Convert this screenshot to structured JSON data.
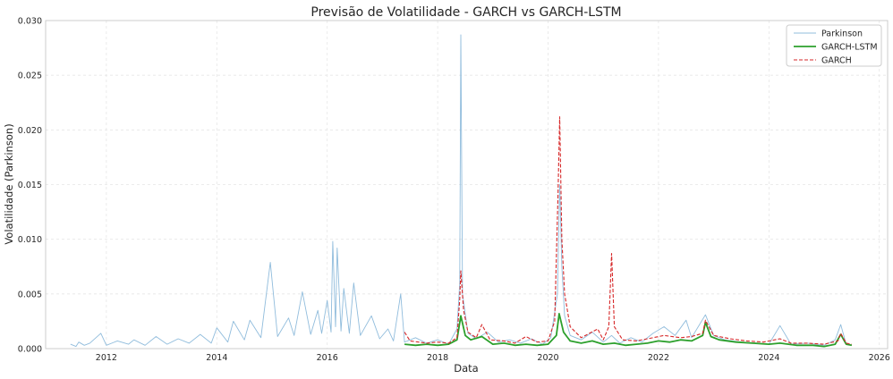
{
  "chart_data": {
    "type": "line",
    "title": "Previsão de Volatilidade - GARCH vs GARCH-LSTM",
    "xlabel": "Data",
    "ylabel": "Volatilidade (Parkinson)",
    "xlim": [
      2010.9,
      2026.15
    ],
    "ylim": [
      0.0,
      0.03
    ],
    "x_ticks": [
      "2012",
      "2014",
      "2016",
      "2018",
      "2020",
      "2022",
      "2024",
      "2026"
    ],
    "y_ticks": [
      "0.000",
      "0.005",
      "0.010",
      "0.015",
      "0.020",
      "0.025",
      "0.030"
    ],
    "grid": true,
    "legend_position": "top-right",
    "series": [
      {
        "name": "Parkinson",
        "color": "#8ab8da",
        "style": "solid-thin",
        "points": [
          [
            2011.35,
            0.0004
          ],
          [
            2011.45,
            0.0002
          ],
          [
            2011.5,
            0.0006
          ],
          [
            2011.6,
            0.0003
          ],
          [
            2011.7,
            0.0005
          ],
          [
            2011.9,
            0.0014
          ],
          [
            2012.0,
            0.0003
          ],
          [
            2012.2,
            0.0007
          ],
          [
            2012.4,
            0.0004
          ],
          [
            2012.5,
            0.0008
          ],
          [
            2012.7,
            0.0003
          ],
          [
            2012.9,
            0.0011
          ],
          [
            2013.1,
            0.0004
          ],
          [
            2013.3,
            0.0009
          ],
          [
            2013.5,
            0.0005
          ],
          [
            2013.7,
            0.0013
          ],
          [
            2013.9,
            0.0005
          ],
          [
            2014.0,
            0.0019
          ],
          [
            2014.2,
            0.0006
          ],
          [
            2014.3,
            0.0025
          ],
          [
            2014.5,
            0.0008
          ],
          [
            2014.6,
            0.0026
          ],
          [
            2014.8,
            0.001
          ],
          [
            2014.97,
            0.0079
          ],
          [
            2015.1,
            0.0011
          ],
          [
            2015.3,
            0.0028
          ],
          [
            2015.4,
            0.0012
          ],
          [
            2015.55,
            0.0052
          ],
          [
            2015.7,
            0.0013
          ],
          [
            2015.83,
            0.0035
          ],
          [
            2015.9,
            0.0014
          ],
          [
            2016.0,
            0.0044
          ],
          [
            2016.07,
            0.0015
          ],
          [
            2016.1,
            0.0098
          ],
          [
            2016.15,
            0.002
          ],
          [
            2016.18,
            0.0092
          ],
          [
            2016.25,
            0.0016
          ],
          [
            2016.3,
            0.0055
          ],
          [
            2016.4,
            0.0014
          ],
          [
            2016.48,
            0.006
          ],
          [
            2016.6,
            0.0012
          ],
          [
            2016.8,
            0.003
          ],
          [
            2016.95,
            0.0009
          ],
          [
            2017.1,
            0.0018
          ],
          [
            2017.2,
            0.0007
          ],
          [
            2017.33,
            0.005
          ],
          [
            2017.4,
            0.0006
          ],
          [
            2017.6,
            0.001
          ],
          [
            2017.8,
            0.0005
          ],
          [
            2018.0,
            0.0008
          ],
          [
            2018.2,
            0.0004
          ],
          [
            2018.35,
            0.0018
          ],
          [
            2018.4,
            0.006
          ],
          [
            2018.42,
            0.0287
          ],
          [
            2018.45,
            0.005
          ],
          [
            2018.55,
            0.0014
          ],
          [
            2018.7,
            0.0009
          ],
          [
            2018.9,
            0.0015
          ],
          [
            2019.1,
            0.0006
          ],
          [
            2019.3,
            0.0008
          ],
          [
            2019.5,
            0.0005
          ],
          [
            2019.7,
            0.0009
          ],
          [
            2019.9,
            0.0004
          ],
          [
            2020.05,
            0.001
          ],
          [
            2020.17,
            0.005
          ],
          [
            2020.21,
            0.015
          ],
          [
            2020.25,
            0.0075
          ],
          [
            2020.3,
            0.003
          ],
          [
            2020.4,
            0.0012
          ],
          [
            2020.6,
            0.0008
          ],
          [
            2020.8,
            0.0015
          ],
          [
            2021.0,
            0.0006
          ],
          [
            2021.15,
            0.0012
          ],
          [
            2021.3,
            0.0005
          ],
          [
            2021.5,
            0.001
          ],
          [
            2021.7,
            0.0006
          ],
          [
            2021.9,
            0.0014
          ],
          [
            2022.1,
            0.002
          ],
          [
            2022.3,
            0.0012
          ],
          [
            2022.5,
            0.0026
          ],
          [
            2022.6,
            0.001
          ],
          [
            2022.85,
            0.0031
          ],
          [
            2023.0,
            0.0012
          ],
          [
            2023.2,
            0.0008
          ],
          [
            2023.5,
            0.0006
          ],
          [
            2023.8,
            0.0005
          ],
          [
            2024.0,
            0.0004
          ],
          [
            2024.2,
            0.0021
          ],
          [
            2024.4,
            0.0004
          ],
          [
            2024.7,
            0.0005
          ],
          [
            2025.0,
            0.0003
          ],
          [
            2025.2,
            0.0008
          ],
          [
            2025.3,
            0.0022
          ],
          [
            2025.4,
            0.0004
          ],
          [
            2025.5,
            0.0003
          ]
        ]
      },
      {
        "name": "GARCH-LSTM",
        "color": "#2ca02c",
        "style": "solid-thick",
        "points": [
          [
            2017.4,
            0.0004
          ],
          [
            2017.6,
            0.0003
          ],
          [
            2017.8,
            0.0004
          ],
          [
            2018.0,
            0.0003
          ],
          [
            2018.2,
            0.0004
          ],
          [
            2018.35,
            0.0008
          ],
          [
            2018.42,
            0.003
          ],
          [
            2018.5,
            0.0012
          ],
          [
            2018.6,
            0.0008
          ],
          [
            2018.8,
            0.0011
          ],
          [
            2019.0,
            0.0004
          ],
          [
            2019.2,
            0.0005
          ],
          [
            2019.4,
            0.0003
          ],
          [
            2019.6,
            0.0004
          ],
          [
            2019.8,
            0.0003
          ],
          [
            2020.0,
            0.0004
          ],
          [
            2020.15,
            0.0012
          ],
          [
            2020.2,
            0.0032
          ],
          [
            2020.28,
            0.0015
          ],
          [
            2020.4,
            0.0007
          ],
          [
            2020.6,
            0.0005
          ],
          [
            2020.8,
            0.0007
          ],
          [
            2021.0,
            0.0004
          ],
          [
            2021.2,
            0.0005
          ],
          [
            2021.4,
            0.0003
          ],
          [
            2021.6,
            0.0004
          ],
          [
            2021.8,
            0.0005
          ],
          [
            2022.0,
            0.0007
          ],
          [
            2022.2,
            0.0006
          ],
          [
            2022.4,
            0.0008
          ],
          [
            2022.6,
            0.0007
          ],
          [
            2022.8,
            0.0012
          ],
          [
            2022.85,
            0.0024
          ],
          [
            2022.95,
            0.0011
          ],
          [
            2023.1,
            0.0008
          ],
          [
            2023.4,
            0.0006
          ],
          [
            2023.7,
            0.0005
          ],
          [
            2024.0,
            0.0004
          ],
          [
            2024.2,
            0.0005
          ],
          [
            2024.5,
            0.0003
          ],
          [
            2024.8,
            0.0003
          ],
          [
            2025.0,
            0.0002
          ],
          [
            2025.2,
            0.0004
          ],
          [
            2025.3,
            0.0013
          ],
          [
            2025.4,
            0.0004
          ],
          [
            2025.5,
            0.0003
          ]
        ]
      },
      {
        "name": "GARCH",
        "color": "#d62728",
        "style": "dashed",
        "points": [
          [
            2017.4,
            0.0015
          ],
          [
            2017.5,
            0.0007
          ],
          [
            2017.8,
            0.0005
          ],
          [
            2018.0,
            0.0006
          ],
          [
            2018.2,
            0.0005
          ],
          [
            2018.35,
            0.001
          ],
          [
            2018.4,
            0.0045
          ],
          [
            2018.42,
            0.0071
          ],
          [
            2018.47,
            0.0035
          ],
          [
            2018.55,
            0.0015
          ],
          [
            2018.7,
            0.001
          ],
          [
            2018.8,
            0.0022
          ],
          [
            2018.95,
            0.0008
          ],
          [
            2019.2,
            0.0007
          ],
          [
            2019.4,
            0.0005
          ],
          [
            2019.6,
            0.0011
          ],
          [
            2019.8,
            0.0006
          ],
          [
            2020.0,
            0.0007
          ],
          [
            2020.12,
            0.0025
          ],
          [
            2020.18,
            0.014
          ],
          [
            2020.21,
            0.0212
          ],
          [
            2020.25,
            0.01
          ],
          [
            2020.3,
            0.005
          ],
          [
            2020.4,
            0.002
          ],
          [
            2020.6,
            0.001
          ],
          [
            2020.9,
            0.0018
          ],
          [
            2021.0,
            0.0008
          ],
          [
            2021.1,
            0.002
          ],
          [
            2021.15,
            0.0087
          ],
          [
            2021.2,
            0.002
          ],
          [
            2021.35,
            0.0008
          ],
          [
            2021.6,
            0.0007
          ],
          [
            2021.9,
            0.001
          ],
          [
            2022.1,
            0.0012
          ],
          [
            2022.4,
            0.001
          ],
          [
            2022.6,
            0.0011
          ],
          [
            2022.8,
            0.0014
          ],
          [
            2022.85,
            0.0026
          ],
          [
            2023.0,
            0.0012
          ],
          [
            2023.3,
            0.0009
          ],
          [
            2023.6,
            0.0007
          ],
          [
            2023.9,
            0.0006
          ],
          [
            2024.2,
            0.0009
          ],
          [
            2024.4,
            0.0005
          ],
          [
            2024.7,
            0.0005
          ],
          [
            2025.0,
            0.0004
          ],
          [
            2025.25,
            0.0007
          ],
          [
            2025.3,
            0.0014
          ],
          [
            2025.4,
            0.0005
          ],
          [
            2025.5,
            0.0004
          ]
        ]
      }
    ]
  }
}
